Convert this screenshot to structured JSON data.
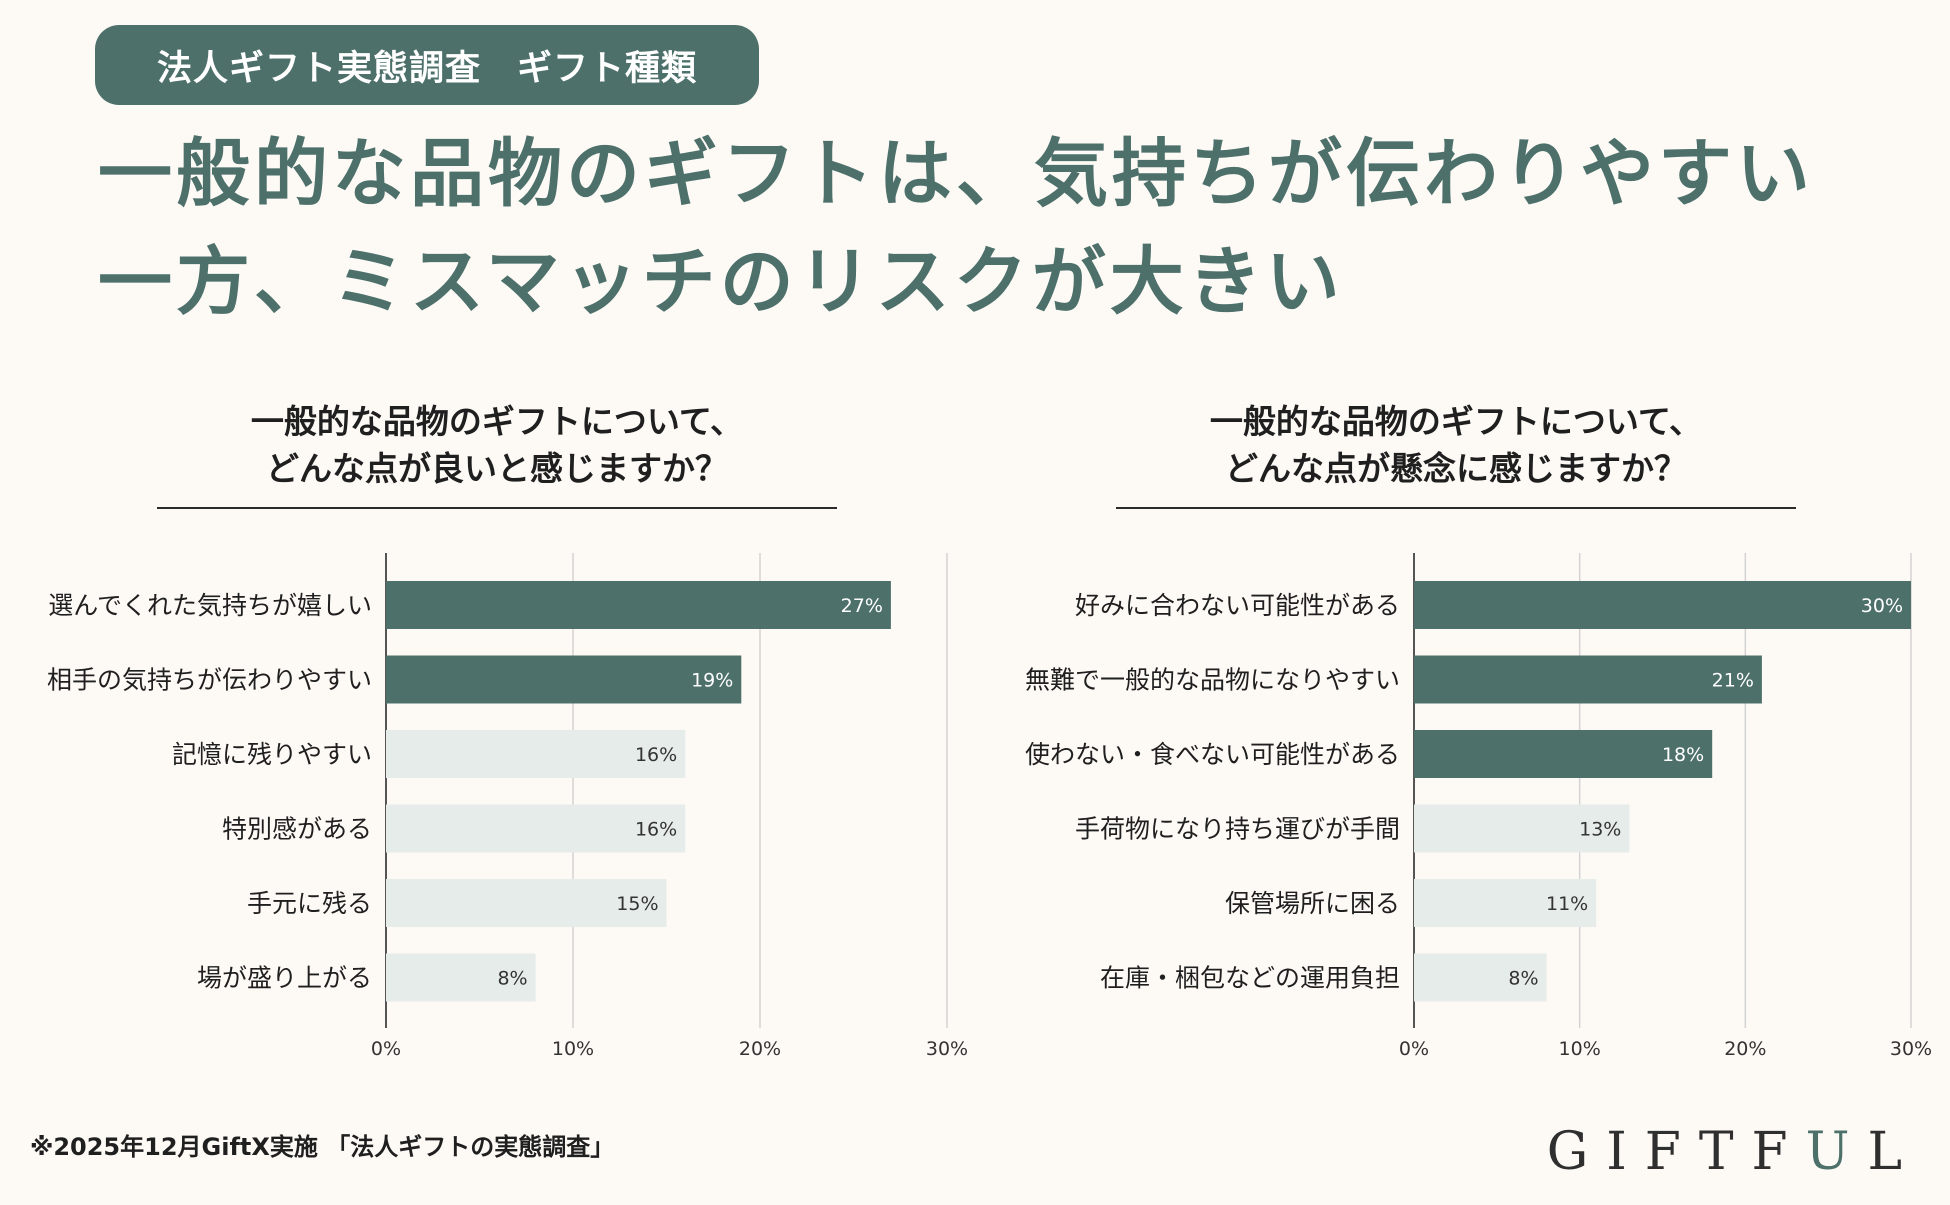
{
  "badge": "法人ギフト実態調査　ギフト種類",
  "headline": {
    "line1": "一般的な品物のギフトは、気持ちが伝わりやすい",
    "line2": "一方、ミスマッチのリスクが大きい"
  },
  "colors": {
    "accent": "#4d706b",
    "bar_highlight": "#4d706b",
    "bar_muted": "#e6ecea",
    "background": "#fdfaf6"
  },
  "chart_data": [
    {
      "type": "bar",
      "orientation": "horizontal",
      "title_line1": "一般的な品物のギフトについて、",
      "title_line2": "どんな点が良いと感じますか？",
      "categories": [
        "選んでくれた気持ちが嬉しい",
        "相手の気持ちが伝わりやすい",
        "記憶に残りやすい",
        "特別感がある",
        "手元に残る",
        "場が盛り上がる"
      ],
      "values": [
        27,
        19,
        16,
        16,
        15,
        8
      ],
      "value_labels": [
        "27%",
        "19%",
        "16%",
        "16%",
        "15%",
        "8%"
      ],
      "highlighted": [
        true,
        true,
        false,
        false,
        false,
        false
      ],
      "xlim": [
        0,
        30
      ],
      "xticks": [
        "0%",
        "10%",
        "20%",
        "30%"
      ],
      "grid": true
    },
    {
      "type": "bar",
      "orientation": "horizontal",
      "title_line1": "一般的な品物のギフトについて、",
      "title_line2": "どんな点が懸念に感じますか？",
      "categories": [
        "好みに合わない可能性がある",
        "無難で一般的な品物になりやすい",
        "使わない・食べない可能性がある",
        "手荷物になり持ち運びが手間",
        "保管場所に困る",
        "在庫・梱包などの運用負担"
      ],
      "values": [
        30,
        21,
        18,
        13,
        11,
        8
      ],
      "value_labels": [
        "30%",
        "21%",
        "18%",
        "13%",
        "11%",
        "8%"
      ],
      "highlighted": [
        true,
        true,
        true,
        false,
        false,
        false
      ],
      "xlim": [
        0,
        30
      ],
      "xticks": [
        "0%",
        "10%",
        "20%",
        "30%"
      ],
      "grid": true
    }
  ],
  "footnote": "※2025年12月GiftX実施 「法人ギフトの実態調査」",
  "logo": {
    "part1": "GIFTF",
    "accent": "U",
    "part2": "L"
  }
}
